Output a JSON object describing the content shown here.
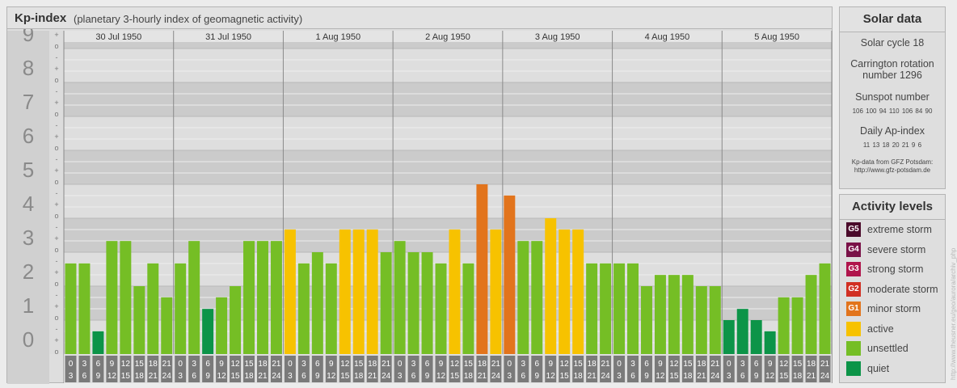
{
  "title": {
    "main": "Kp-index",
    "subtitle": "(planetary 3-hourly index of geomagnetic activity)"
  },
  "chart_data": {
    "type": "bar",
    "ylim": [
      0,
      9.33
    ],
    "y_ticks": [
      "0",
      "1",
      "2",
      "3",
      "4",
      "5",
      "6",
      "7",
      "8",
      "9"
    ],
    "subdivision_marks": [
      "o",
      "+",
      "-"
    ],
    "days": [
      "30 Jul 1950",
      "31 Jul 1950",
      "1 Aug 1950",
      "2 Aug 1950",
      "3 Aug 1950",
      "4 Aug 1950",
      "5 Aug 1950"
    ],
    "intervals": [
      [
        "0",
        "3"
      ],
      [
        "3",
        "6"
      ],
      [
        "6",
        "9"
      ],
      [
        "9",
        "12"
      ],
      [
        "12",
        "15"
      ],
      [
        "15",
        "18"
      ],
      [
        "18",
        "21"
      ],
      [
        "21",
        "24"
      ]
    ],
    "values": [
      [
        2.67,
        2.67,
        0.67,
        3.33,
        3.33,
        2.0,
        2.67,
        1.67
      ],
      [
        2.67,
        3.33,
        1.33,
        1.67,
        2.0,
        3.33,
        3.33,
        3.33
      ],
      [
        3.67,
        2.67,
        3.0,
        2.67,
        3.67,
        3.67,
        3.67,
        3.0
      ],
      [
        3.33,
        3.0,
        3.0,
        2.67,
        3.67,
        2.67,
        5.0,
        3.67
      ],
      [
        4.67,
        3.33,
        3.33,
        4.0,
        3.67,
        3.67,
        2.67,
        2.67
      ],
      [
        2.67,
        2.67,
        2.0,
        2.33,
        2.33,
        2.33,
        2.0,
        2.0
      ],
      [
        1.0,
        1.33,
        1.0,
        0.67,
        1.67,
        1.67,
        2.33,
        2.67
      ]
    ],
    "level_colors": {
      "quiet": "#0c9448",
      "unsettled": "#75be25",
      "active": "#f7c200",
      "minor": "#e2741c"
    }
  },
  "solar": {
    "heading": "Solar data",
    "cycle": "Solar cycle 18",
    "carrington_l1": "Carrington rotation",
    "carrington_l2": "number 1296",
    "sunspot_heading": "Sunspot number",
    "sunspot_values": "106 100 94 110 106 84 90",
    "ap_heading": "Daily Ap-index",
    "ap_values": "11 13 18 20 21 9 6",
    "source_l1": "Kp-data from GFZ Potsdam:",
    "source_l2": "http://www.gfz-potsdam.de"
  },
  "activity": {
    "heading": "Activity levels",
    "items": [
      {
        "badge": "G5",
        "label": "extreme storm",
        "color": "#4a0a2a"
      },
      {
        "badge": "G4",
        "label": "severe storm",
        "color": "#7a1248"
      },
      {
        "badge": "G3",
        "label": "strong storm",
        "color": "#b0154c"
      },
      {
        "badge": "G2",
        "label": "moderate storm",
        "color": "#d12f22"
      },
      {
        "badge": "G1",
        "label": "minor storm",
        "color": "#e2741c"
      },
      {
        "badge": "",
        "label": "active",
        "color": "#f7c200"
      },
      {
        "badge": "",
        "label": "unsettled",
        "color": "#75be25"
      },
      {
        "badge": "",
        "label": "quiet",
        "color": "#0c9448"
      }
    ]
  },
  "credit": "http://www.theusner.eu/geo/aurora/archiv_php"
}
